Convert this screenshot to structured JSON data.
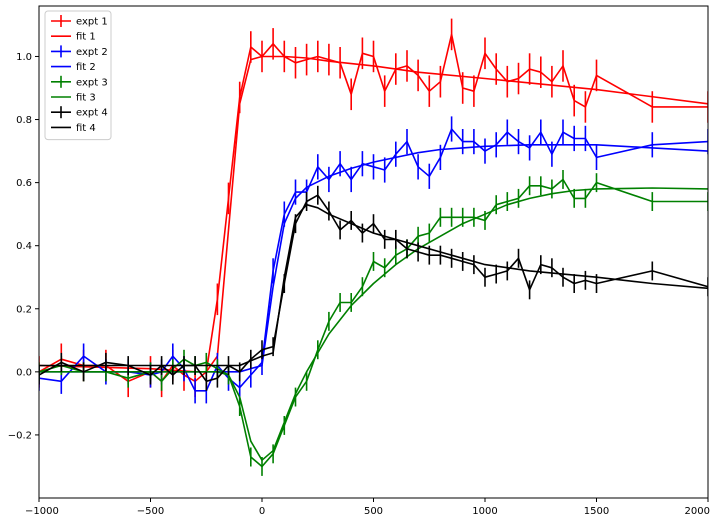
{
  "chart_data": {
    "type": "line",
    "title": "",
    "xlabel": "",
    "ylabel": "",
    "xlim": [
      -1000,
      2000
    ],
    "ylim": [
      -0.4,
      1.16
    ],
    "xticks": [
      -1000,
      -500,
      0,
      500,
      1000,
      1500,
      2000
    ],
    "xtick_labels": [
      "−1000",
      "−500",
      "0",
      "500",
      "1000",
      "1500",
      "2000"
    ],
    "yticks": [
      -0.2,
      0.0,
      0.2,
      0.4,
      0.6,
      0.8,
      1.0
    ],
    "ytick_labels": [
      "−0.2",
      "0.0",
      "0.2",
      "0.4",
      "0.6",
      "0.8",
      "1.0"
    ],
    "grid": false,
    "legend_position": "upper-left",
    "legend": [
      {
        "label": "expt 1",
        "kind": "errorbar",
        "color": "#ff0000"
      },
      {
        "label": "fit 1",
        "kind": "line",
        "color": "#ff0000"
      },
      {
        "label": "expt 2",
        "kind": "errorbar",
        "color": "#0000ff"
      },
      {
        "label": "fit 2",
        "kind": "line",
        "color": "#0000ff"
      },
      {
        "label": "expt 3",
        "kind": "errorbar",
        "color": "#008000"
      },
      {
        "label": "fit 3",
        "kind": "line",
        "color": "#008000"
      },
      {
        "label": "expt 4",
        "kind": "errorbar",
        "color": "#000000"
      },
      {
        "label": "fit 4",
        "kind": "line",
        "color": "#000000"
      }
    ],
    "series": [
      {
        "name": "expt 1",
        "kind": "errorbar",
        "color": "#ff0000",
        "x": [
          -1000,
          -900,
          -800,
          -700,
          -600,
          -500,
          -450,
          -400,
          -350,
          -300,
          -250,
          -200,
          -150,
          -100,
          -50,
          0,
          50,
          100,
          150,
          200,
          250,
          300,
          350,
          400,
          450,
          500,
          550,
          600,
          650,
          700,
          750,
          800,
          850,
          900,
          950,
          1000,
          1050,
          1100,
          1150,
          1200,
          1250,
          1300,
          1350,
          1400,
          1450,
          1500,
          1750,
          2000
        ],
        "y": [
          0.0,
          0.04,
          0.02,
          0.02,
          -0.03,
          0.0,
          -0.03,
          0.02,
          -0.01,
          -0.03,
          0.0,
          0.23,
          0.55,
          0.87,
          1.03,
          1.0,
          1.04,
          1.0,
          0.98,
          0.99,
          1.0,
          0.99,
          0.98,
          0.88,
          1.01,
          1.0,
          0.89,
          0.96,
          0.97,
          0.94,
          0.89,
          0.92,
          1.07,
          0.9,
          0.89,
          1.01,
          0.96,
          0.92,
          0.93,
          0.96,
          0.95,
          0.92,
          0.97,
          0.86,
          0.84,
          0.94,
          0.84,
          0.84
        ],
        "err": [
          0.05,
          0.05,
          0.05,
          0.05,
          0.05,
          0.05,
          0.05,
          0.05,
          0.05,
          0.05,
          0.05,
          0.05,
          0.05,
          0.05,
          0.05,
          0.05,
          0.05,
          0.05,
          0.05,
          0.05,
          0.05,
          0.05,
          0.05,
          0.05,
          0.05,
          0.05,
          0.05,
          0.05,
          0.05,
          0.05,
          0.05,
          0.05,
          0.05,
          0.05,
          0.05,
          0.05,
          0.05,
          0.05,
          0.05,
          0.05,
          0.05,
          0.05,
          0.05,
          0.05,
          0.05,
          0.05,
          0.05,
          0.05
        ]
      },
      {
        "name": "fit 1",
        "kind": "line",
        "color": "#ff0000",
        "x": [
          -1000,
          -500,
          -300,
          -250,
          -200,
          -150,
          -100,
          -50,
          0,
          50,
          100,
          200,
          300,
          500,
          700,
          1000,
          1500,
          2000
        ],
        "y": [
          0.02,
          0.01,
          0.0,
          0.0,
          0.05,
          0.45,
          0.85,
          0.99,
          1.0,
          1.0,
          1.0,
          0.995,
          0.985,
          0.97,
          0.95,
          0.93,
          0.895,
          0.85
        ]
      },
      {
        "name": "expt 2",
        "kind": "errorbar",
        "color": "#0000ff",
        "x": [
          -1000,
          -900,
          -800,
          -700,
          -600,
          -500,
          -450,
          -400,
          -350,
          -300,
          -250,
          -200,
          -150,
          -100,
          -50,
          0,
          50,
          100,
          150,
          200,
          250,
          300,
          350,
          400,
          450,
          500,
          550,
          600,
          650,
          700,
          750,
          800,
          850,
          900,
          950,
          1000,
          1050,
          1100,
          1150,
          1200,
          1250,
          1300,
          1350,
          1400,
          1450,
          1500,
          1750,
          2000
        ],
        "y": [
          -0.02,
          -0.03,
          0.05,
          0.0,
          0.0,
          -0.01,
          0.0,
          0.05,
          0.01,
          -0.06,
          -0.06,
          0.02,
          -0.02,
          -0.05,
          -0.01,
          0.03,
          0.32,
          0.5,
          0.57,
          0.57,
          0.65,
          0.61,
          0.66,
          0.61,
          0.66,
          0.65,
          0.64,
          0.69,
          0.73,
          0.65,
          0.62,
          0.68,
          0.77,
          0.73,
          0.73,
          0.7,
          0.72,
          0.76,
          0.73,
          0.71,
          0.76,
          0.69,
          0.76,
          0.74,
          0.74,
          0.68,
          0.72,
          0.73
        ],
        "err": [
          0.04,
          0.04,
          0.04,
          0.04,
          0.04,
          0.04,
          0.04,
          0.04,
          0.04,
          0.04,
          0.04,
          0.04,
          0.04,
          0.04,
          0.04,
          0.04,
          0.04,
          0.04,
          0.04,
          0.04,
          0.04,
          0.04,
          0.04,
          0.04,
          0.04,
          0.04,
          0.04,
          0.04,
          0.04,
          0.04,
          0.04,
          0.04,
          0.04,
          0.04,
          0.04,
          0.04,
          0.04,
          0.04,
          0.04,
          0.04,
          0.04,
          0.04,
          0.04,
          0.04,
          0.04,
          0.04,
          0.04,
          0.04
        ]
      },
      {
        "name": "fit 2",
        "kind": "line",
        "color": "#0000ff",
        "x": [
          -1000,
          -500,
          -100,
          0,
          50,
          100,
          150,
          200,
          300,
          400,
          500,
          600,
          700,
          800,
          900,
          1000,
          1200,
          1500,
          2000
        ],
        "y": [
          0.0,
          0.0,
          0.0,
          0.02,
          0.27,
          0.47,
          0.55,
          0.585,
          0.62,
          0.645,
          0.665,
          0.68,
          0.695,
          0.705,
          0.71,
          0.715,
          0.72,
          0.72,
          0.7
        ]
      },
      {
        "name": "expt 3",
        "kind": "errorbar",
        "color": "#008000",
        "x": [
          -1000,
          -900,
          -800,
          -700,
          -600,
          -500,
          -450,
          -400,
          -350,
          -300,
          -250,
          -200,
          -150,
          -100,
          -50,
          0,
          50,
          100,
          150,
          200,
          250,
          300,
          350,
          400,
          450,
          500,
          550,
          600,
          650,
          700,
          750,
          800,
          850,
          900,
          950,
          1000,
          1050,
          1100,
          1150,
          1200,
          1250,
          1300,
          1350,
          1400,
          1450,
          1500,
          1750,
          2000
        ],
        "y": [
          0.0,
          0.02,
          0.0,
          0.0,
          -0.02,
          0.0,
          -0.03,
          0.01,
          0.04,
          0.02,
          0.03,
          0.01,
          -0.01,
          -0.11,
          -0.27,
          -0.3,
          -0.26,
          -0.17,
          -0.08,
          -0.03,
          0.07,
          0.16,
          0.22,
          0.22,
          0.27,
          0.35,
          0.33,
          0.37,
          0.39,
          0.43,
          0.44,
          0.49,
          0.49,
          0.49,
          0.49,
          0.48,
          0.53,
          0.54,
          0.55,
          0.59,
          0.59,
          0.58,
          0.61,
          0.55,
          0.55,
          0.6,
          0.54,
          0.54
        ],
        "err": [
          0.03,
          0.03,
          0.03,
          0.03,
          0.03,
          0.03,
          0.03,
          0.03,
          0.03,
          0.03,
          0.03,
          0.03,
          0.03,
          0.03,
          0.03,
          0.03,
          0.03,
          0.03,
          0.03,
          0.03,
          0.03,
          0.03,
          0.03,
          0.03,
          0.03,
          0.03,
          0.03,
          0.03,
          0.03,
          0.03,
          0.03,
          0.03,
          0.03,
          0.03,
          0.03,
          0.03,
          0.03,
          0.03,
          0.03,
          0.03,
          0.03,
          0.03,
          0.03,
          0.03,
          0.03,
          0.03,
          0.03,
          0.03
        ]
      },
      {
        "name": "fit 3",
        "kind": "line",
        "color": "#008000",
        "x": [
          -1000,
          -500,
          -200,
          -150,
          -100,
          -50,
          0,
          50,
          100,
          150,
          200,
          300,
          400,
          500,
          600,
          700,
          800,
          900,
          1000,
          1100,
          1200,
          1300,
          1400,
          1500,
          1750,
          2000
        ],
        "y": [
          0.0,
          0.0,
          0.0,
          -0.01,
          -0.08,
          -0.22,
          -0.28,
          -0.25,
          -0.16,
          -0.07,
          0.0,
          0.12,
          0.21,
          0.28,
          0.34,
          0.39,
          0.43,
          0.47,
          0.5,
          0.53,
          0.55,
          0.565,
          0.575,
          0.58,
          0.583,
          0.58
        ]
      },
      {
        "name": "expt 4",
        "kind": "errorbar",
        "color": "#000000",
        "x": [
          -1000,
          -900,
          -800,
          -700,
          -600,
          -500,
          -450,
          -400,
          -350,
          -300,
          -250,
          -200,
          -150,
          -100,
          -50,
          0,
          50,
          100,
          150,
          200,
          250,
          300,
          350,
          400,
          450,
          500,
          550,
          600,
          650,
          700,
          750,
          800,
          850,
          900,
          950,
          1000,
          1050,
          1100,
          1150,
          1200,
          1250,
          1300,
          1350,
          1400,
          1450,
          1500,
          1750,
          2000
        ],
        "y": [
          -0.01,
          0.03,
          0.0,
          0.03,
          0.02,
          -0.01,
          0.02,
          -0.01,
          0.02,
          0.02,
          -0.03,
          -0.02,
          0.02,
          0.0,
          0.04,
          0.07,
          0.08,
          0.28,
          0.47,
          0.54,
          0.56,
          0.51,
          0.45,
          0.48,
          0.44,
          0.47,
          0.42,
          0.42,
          0.39,
          0.38,
          0.37,
          0.37,
          0.36,
          0.35,
          0.34,
          0.3,
          0.31,
          0.32,
          0.36,
          0.26,
          0.34,
          0.33,
          0.3,
          0.28,
          0.29,
          0.28,
          0.32,
          0.27
        ],
        "err": [
          0.03,
          0.03,
          0.03,
          0.03,
          0.03,
          0.03,
          0.03,
          0.03,
          0.03,
          0.03,
          0.03,
          0.03,
          0.03,
          0.03,
          0.03,
          0.03,
          0.03,
          0.03,
          0.03,
          0.03,
          0.03,
          0.03,
          0.03,
          0.03,
          0.03,
          0.03,
          0.03,
          0.03,
          0.03,
          0.03,
          0.03,
          0.03,
          0.03,
          0.03,
          0.03,
          0.03,
          0.03,
          0.03,
          0.03,
          0.03,
          0.03,
          0.03,
          0.03,
          0.03,
          0.03,
          0.03,
          0.03,
          0.03
        ]
      },
      {
        "name": "fit 4",
        "kind": "line",
        "color": "#000000",
        "x": [
          -1000,
          -700,
          -500,
          -300,
          -100,
          0,
          50,
          100,
          150,
          200,
          250,
          300,
          400,
          500,
          600,
          700,
          800,
          900,
          1000,
          1200,
          1500,
          1750,
          2000
        ],
        "y": [
          0.02,
          0.02,
          0.02,
          0.02,
          0.02,
          0.05,
          0.06,
          0.3,
          0.49,
          0.53,
          0.52,
          0.5,
          0.47,
          0.44,
          0.42,
          0.4,
          0.38,
          0.36,
          0.34,
          0.32,
          0.3,
          0.28,
          0.265
        ]
      }
    ]
  }
}
